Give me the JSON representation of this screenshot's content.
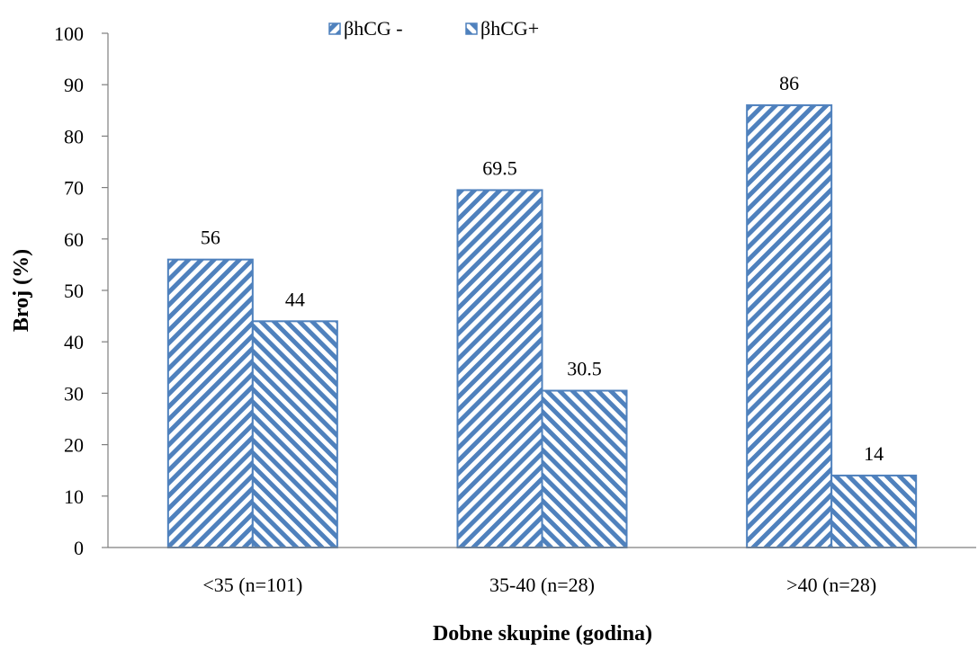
{
  "chart_data": {
    "type": "bar",
    "title": "",
    "xlabel": "Dobne skupine (godina)",
    "ylabel": "Broj (%)",
    "ylim": [
      0,
      100
    ],
    "yticks": [
      "0",
      "10",
      "20",
      "30",
      "40",
      "50",
      "60",
      "70",
      "80",
      "90",
      "100"
    ],
    "categories": [
      "<35 (n=101)",
      "35-40 (n=28)",
      ">40 (n=28)"
    ],
    "series": [
      {
        "name": "βhCG -",
        "values": [
          56,
          69.5,
          86
        ],
        "labels": [
          "56",
          "69.5",
          "86"
        ],
        "pattern": "diagonal-up",
        "color": "#4f81bd"
      },
      {
        "name": "βhCG+",
        "values": [
          44,
          30.5,
          14
        ],
        "labels": [
          "44",
          "30.5",
          "14"
        ],
        "pattern": "diagonal-down",
        "color": "#4f81bd"
      }
    ],
    "legend_position": "top-center",
    "grid": false
  }
}
